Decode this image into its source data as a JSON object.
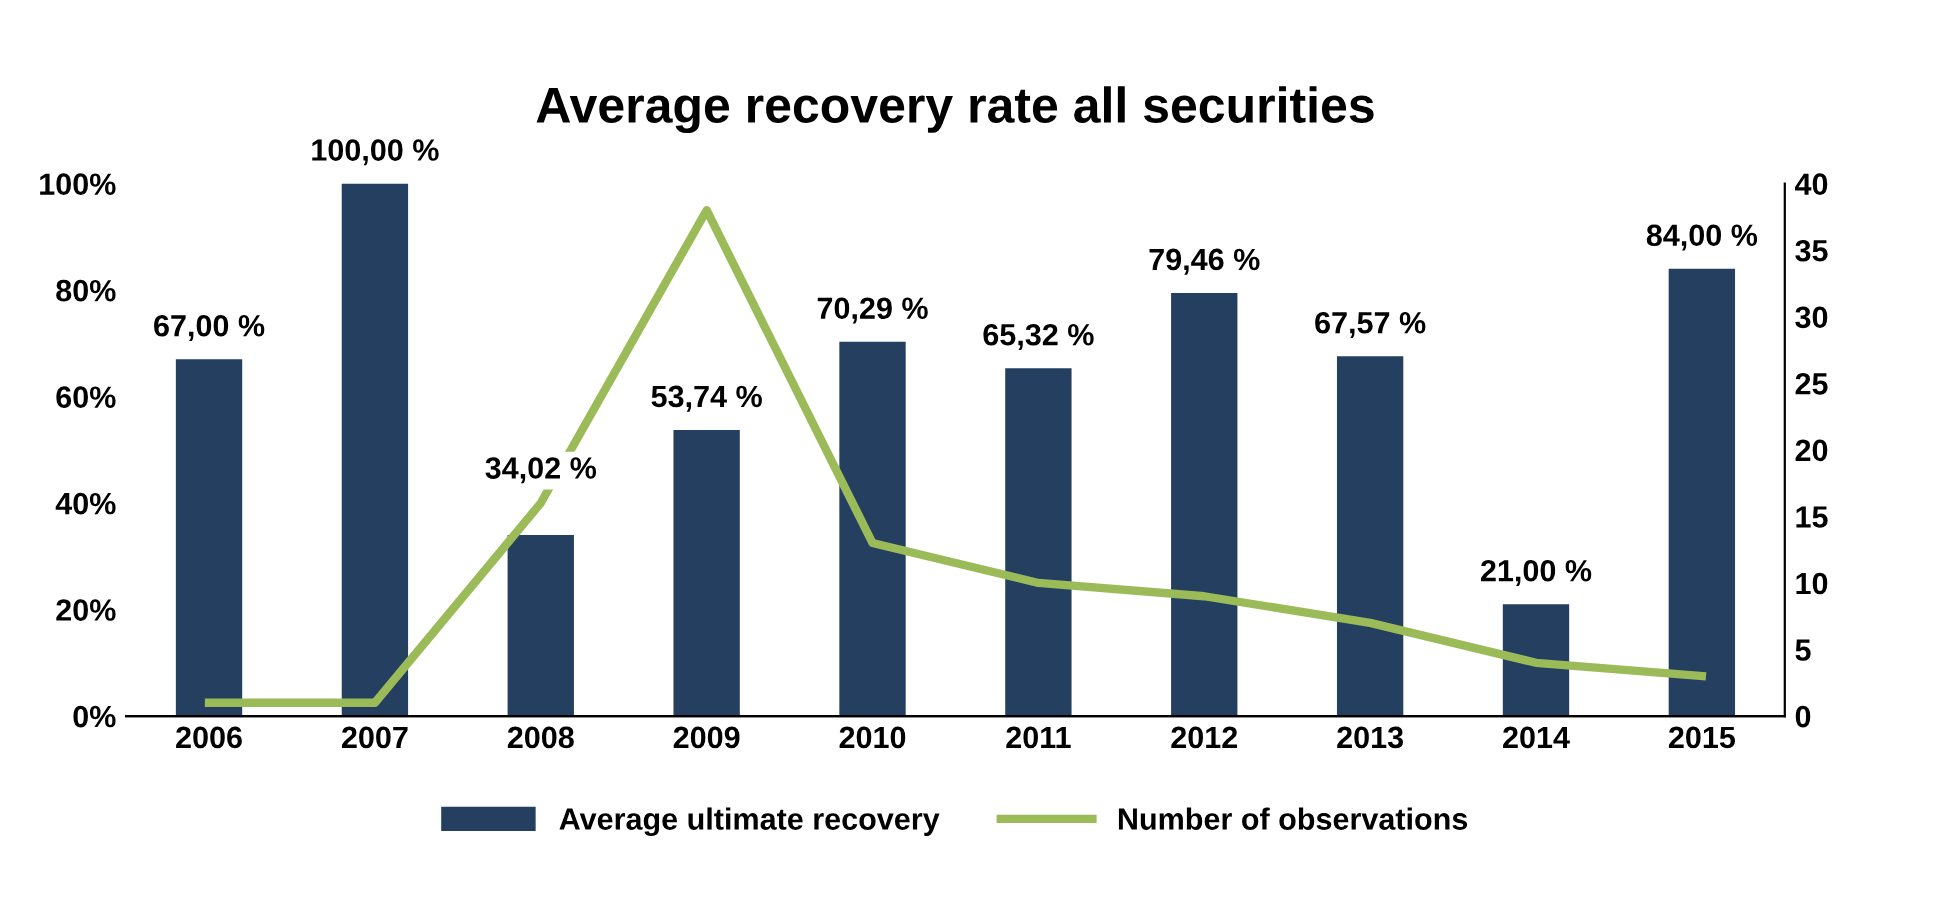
{
  "chart_data": {
    "type": "bar",
    "title": "Average recovery rate all securities",
    "categories": [
      "2006",
      "2007",
      "2008",
      "2009",
      "2010",
      "2011",
      "2012",
      "2013",
      "2014",
      "2015"
    ],
    "series": [
      {
        "name": "Average ultimate recovery",
        "type": "bar",
        "color": "#243f60",
        "values": [
          67.0,
          100.0,
          34.02,
          53.74,
          70.29,
          65.32,
          79.46,
          67.57,
          21.0,
          84.0
        ],
        "value_labels": [
          "67,00 %",
          "100,00 %",
          "34,02 %",
          "53,74 %",
          "70,29 %",
          "65,32 %",
          "79,46 %",
          "67,57 %",
          "21,00 %",
          "84,00 %"
        ]
      },
      {
        "name": "Number of observations",
        "type": "line",
        "axis": "y2",
        "color": "#9bbb59",
        "values": [
          1,
          1,
          16,
          38,
          13,
          10,
          9,
          7,
          4,
          3
        ]
      }
    ],
    "ylim": [
      0,
      100
    ],
    "yticks": [
      {
        "value": 0,
        "label": "0%"
      },
      {
        "value": 20,
        "label": "20%"
      },
      {
        "value": 40,
        "label": "40%"
      },
      {
        "value": 60,
        "label": "60%"
      },
      {
        "value": 80,
        "label": "80%"
      },
      {
        "value": 100,
        "label": "100%"
      }
    ],
    "y2lim": [
      0,
      40
    ],
    "y2ticks": [
      0,
      5,
      10,
      15,
      20,
      25,
      30,
      35,
      40
    ],
    "legend": "bottom",
    "grid": false,
    "marker": "none",
    "line_style": "solid"
  }
}
